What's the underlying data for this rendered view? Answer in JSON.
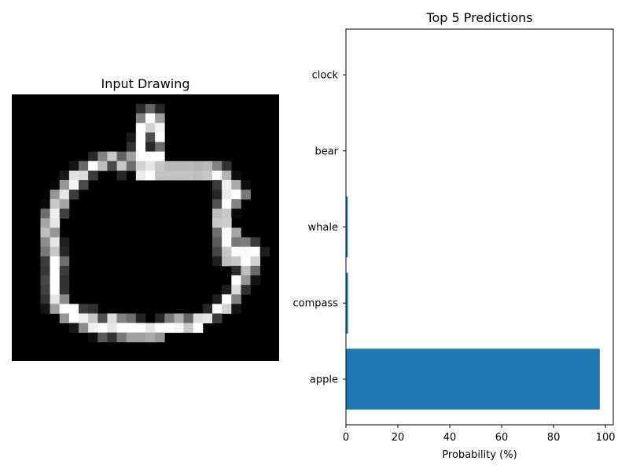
{
  "chart_data": [
    {
      "type": "image",
      "title": "Input Drawing",
      "grid_size": 28,
      "rows": [
        [
          0,
          0,
          0,
          0,
          0,
          0,
          0,
          0,
          0,
          0,
          0,
          0,
          0,
          0,
          0,
          0,
          0,
          0,
          0,
          0,
          0,
          0,
          0,
          0,
          0,
          0,
          0,
          0
        ],
        [
          0,
          0,
          0,
          0,
          0,
          0,
          0,
          0,
          0,
          0,
          0,
          0,
          0,
          45,
          100,
          40,
          0,
          0,
          0,
          0,
          0,
          0,
          0,
          0,
          0,
          0,
          0,
          0
        ],
        [
          0,
          0,
          0,
          0,
          0,
          0,
          0,
          0,
          0,
          0,
          0,
          0,
          0,
          130,
          255,
          160,
          0,
          0,
          0,
          0,
          0,
          0,
          0,
          0,
          0,
          0,
          0,
          0
        ],
        [
          0,
          0,
          0,
          0,
          0,
          0,
          0,
          0,
          0,
          0,
          0,
          0,
          0,
          255,
          210,
          245,
          0,
          0,
          0,
          0,
          0,
          0,
          0,
          0,
          0,
          0,
          0,
          0
        ],
        [
          0,
          0,
          0,
          0,
          0,
          0,
          0,
          0,
          0,
          0,
          0,
          0,
          25,
          255,
          80,
          255,
          0,
          0,
          0,
          0,
          0,
          0,
          0,
          0,
          0,
          0,
          0,
          0
        ],
        [
          0,
          0,
          0,
          0,
          0,
          0,
          0,
          0,
          0,
          0,
          0,
          0,
          50,
          255,
          40,
          110,
          0,
          0,
          0,
          0,
          0,
          0,
          0,
          0,
          0,
          0,
          0,
          0
        ],
        [
          0,
          0,
          0,
          0,
          0,
          0,
          0,
          0,
          40,
          130,
          200,
          100,
          160,
          255,
          255,
          255,
          0,
          0,
          0,
          0,
          0,
          0,
          0,
          0,
          0,
          0,
          0,
          0
        ],
        [
          0,
          0,
          0,
          0,
          0,
          0,
          20,
          105,
          255,
          190,
          75,
          200,
          110,
          210,
          230,
          200,
          185,
          185,
          185,
          180,
          185,
          130,
          50,
          0,
          0,
          0,
          0,
          0
        ],
        [
          0,
          0,
          0,
          0,
          0,
          25,
          225,
          220,
          60,
          0,
          0,
          40,
          0,
          235,
          255,
          195,
          195,
          195,
          195,
          190,
          200,
          250,
          180,
          15,
          0,
          0,
          0,
          0
        ],
        [
          0,
          0,
          0,
          0,
          5,
          150,
          245,
          75,
          0,
          0,
          0,
          0,
          0,
          0,
          0,
          0,
          0,
          0,
          0,
          0,
          0,
          60,
          240,
          170,
          15,
          0,
          0,
          0
        ],
        [
          0,
          0,
          0,
          0,
          150,
          230,
          60,
          0,
          0,
          0,
          0,
          0,
          0,
          0,
          0,
          0,
          0,
          0,
          0,
          0,
          0,
          40,
          235,
          255,
          120,
          0,
          0,
          0
        ],
        [
          0,
          0,
          0,
          10,
          200,
          165,
          0,
          0,
          0,
          0,
          0,
          0,
          0,
          0,
          0,
          0,
          0,
          0,
          0,
          0,
          0,
          80,
          255,
          130,
          0,
          0,
          0,
          0
        ],
        [
          0,
          0,
          0,
          110,
          240,
          65,
          0,
          0,
          0,
          0,
          0,
          0,
          0,
          0,
          0,
          0,
          0,
          0,
          0,
          0,
          0,
          190,
          200,
          10,
          0,
          0,
          0,
          0
        ],
        [
          0,
          0,
          0,
          165,
          230,
          0,
          0,
          0,
          0,
          0,
          0,
          0,
          0,
          0,
          0,
          0,
          0,
          0,
          0,
          0,
          0,
          200,
          205,
          0,
          0,
          0,
          0,
          0
        ],
        [
          0,
          0,
          0,
          190,
          150,
          0,
          0,
          0,
          0,
          0,
          0,
          0,
          0,
          0,
          0,
          0,
          0,
          0,
          0,
          0,
          0,
          110,
          255,
          165,
          0,
          0,
          0,
          0
        ],
        [
          0,
          0,
          0,
          140,
          230,
          30,
          0,
          0,
          0,
          0,
          0,
          0,
          0,
          0,
          0,
          0,
          0,
          0,
          0,
          0,
          0,
          90,
          255,
          120,
          125,
          60,
          0,
          0
        ],
        [
          0,
          0,
          0,
          120,
          200,
          40,
          0,
          0,
          0,
          0,
          0,
          0,
          0,
          0,
          0,
          0,
          0,
          0,
          0,
          0,
          0,
          70,
          200,
          255,
          250,
          255,
          30,
          0
        ],
        [
          0,
          0,
          0,
          60,
          255,
          110,
          0,
          0,
          0,
          0,
          0,
          0,
          0,
          0,
          0,
          0,
          0,
          0,
          0,
          0,
          0,
          30,
          190,
          200,
          255,
          210,
          0,
          0
        ],
        [
          0,
          0,
          0,
          55,
          255,
          60,
          0,
          0,
          0,
          0,
          0,
          0,
          0,
          0,
          0,
          0,
          0,
          0,
          0,
          0,
          0,
          0,
          0,
          45,
          190,
          105,
          0,
          0
        ],
        [
          0,
          0,
          0,
          70,
          255,
          50,
          0,
          0,
          0,
          0,
          0,
          0,
          0,
          0,
          0,
          0,
          0,
          0,
          0,
          0,
          0,
          0,
          0,
          255,
          150,
          20,
          0,
          0
        ],
        [
          0,
          0,
          0,
          65,
          255,
          50,
          0,
          0,
          0,
          0,
          0,
          0,
          0,
          0,
          0,
          0,
          0,
          0,
          0,
          0,
          0,
          0,
          30,
          220,
          50,
          0,
          0,
          0
        ],
        [
          0,
          0,
          0,
          50,
          230,
          140,
          0,
          0,
          0,
          0,
          0,
          0,
          0,
          0,
          0,
          0,
          0,
          0,
          0,
          0,
          0,
          30,
          255,
          130,
          0,
          0,
          0,
          0
        ],
        [
          0,
          0,
          0,
          20,
          160,
          255,
          255,
          60,
          50,
          0,
          0,
          0,
          0,
          0,
          0,
          0,
          0,
          0,
          0,
          0,
          40,
          255,
          210,
          20,
          0,
          0,
          0,
          0
        ],
        [
          0,
          0,
          0,
          0,
          0,
          150,
          255,
          240,
          200,
          80,
          220,
          130,
          110,
          35,
          0,
          40,
          120,
          170,
          100,
          220,
          230,
          60,
          0,
          0,
          0,
          0,
          0,
          0
        ],
        [
          0,
          0,
          0,
          0,
          0,
          0,
          25,
          140,
          240,
          255,
          230,
          255,
          255,
          255,
          230,
          255,
          255,
          245,
          200,
          255,
          0,
          0,
          0,
          0,
          0,
          0,
          0,
          0
        ],
        [
          0,
          0,
          0,
          0,
          0,
          0,
          0,
          0,
          15,
          90,
          50,
          120,
          160,
          160,
          170,
          150,
          0,
          0,
          0,
          0,
          0,
          0,
          0,
          0,
          0,
          0,
          0,
          0
        ],
        [
          0,
          0,
          0,
          0,
          0,
          0,
          0,
          0,
          0,
          0,
          0,
          0,
          0,
          0,
          0,
          0,
          0,
          0,
          0,
          0,
          0,
          0,
          0,
          0,
          0,
          0,
          0,
          0
        ],
        [
          0,
          0,
          0,
          0,
          0,
          0,
          0,
          0,
          0,
          0,
          0,
          0,
          0,
          0,
          0,
          0,
          0,
          0,
          0,
          0,
          0,
          0,
          0,
          0,
          0,
          0,
          0,
          0
        ]
      ]
    },
    {
      "type": "barh",
      "title": "Top 5 Predictions",
      "categories": [
        "apple",
        "compass",
        "whale",
        "bear",
        "clock"
      ],
      "values": [
        97.8,
        0.8,
        0.7,
        0.1,
        0.1
      ],
      "xlabel": "Probability (%)",
      "ylabel": "",
      "xlim": [
        0,
        103
      ],
      "xticks": [
        "0",
        "20",
        "40",
        "60",
        "80",
        "100"
      ],
      "bar_color": "#1f77b4"
    }
  ]
}
